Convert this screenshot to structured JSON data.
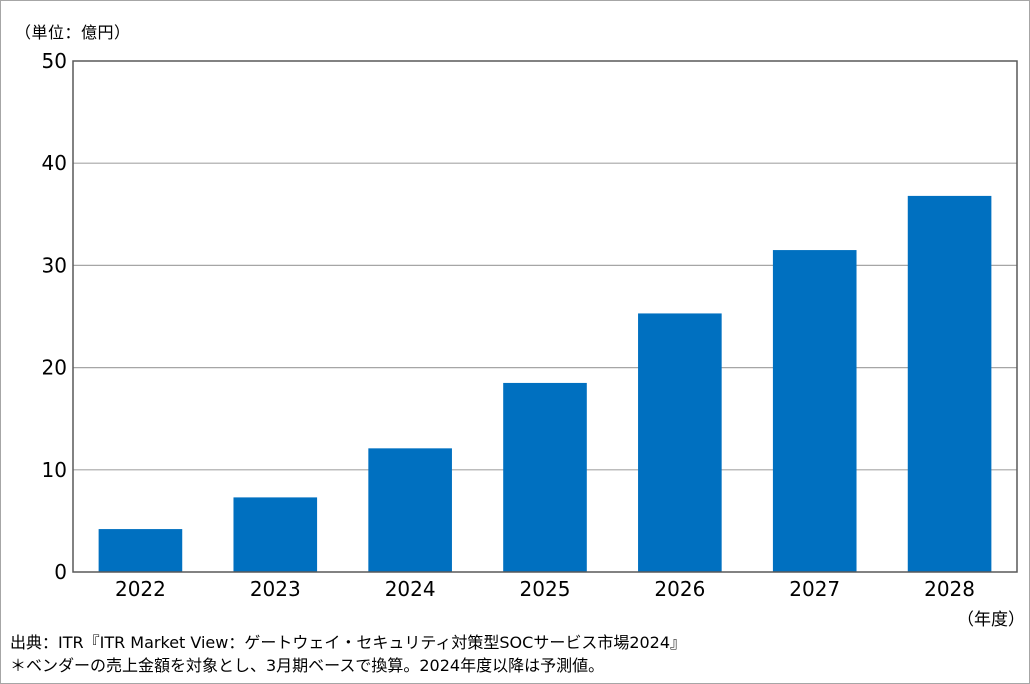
{
  "chart_data": {
    "type": "bar",
    "title": "",
    "unit_label": "（単位：億円）",
    "xlabel": "（年度）",
    "ylabel": "",
    "categories": [
      "2022",
      "2023",
      "2024",
      "2025",
      "2026",
      "2027",
      "2028"
    ],
    "values": [
      4.2,
      7.3,
      12.1,
      18.5,
      25.3,
      31.5,
      36.8
    ],
    "ylim": [
      0,
      50
    ],
    "yticks": [
      0,
      10,
      20,
      30,
      40,
      50
    ],
    "grid": true,
    "legend": "none",
    "bar_color": "#0070c0"
  },
  "footer": {
    "source": "出典：ITR『ITR Market View：ゲートウェイ・セキュリティ対策型SOCサービス市場2024』",
    "note": "＊ベンダーの売上金額を対象とし、3月期ベースで換算。2024年度以降は予測値。"
  }
}
